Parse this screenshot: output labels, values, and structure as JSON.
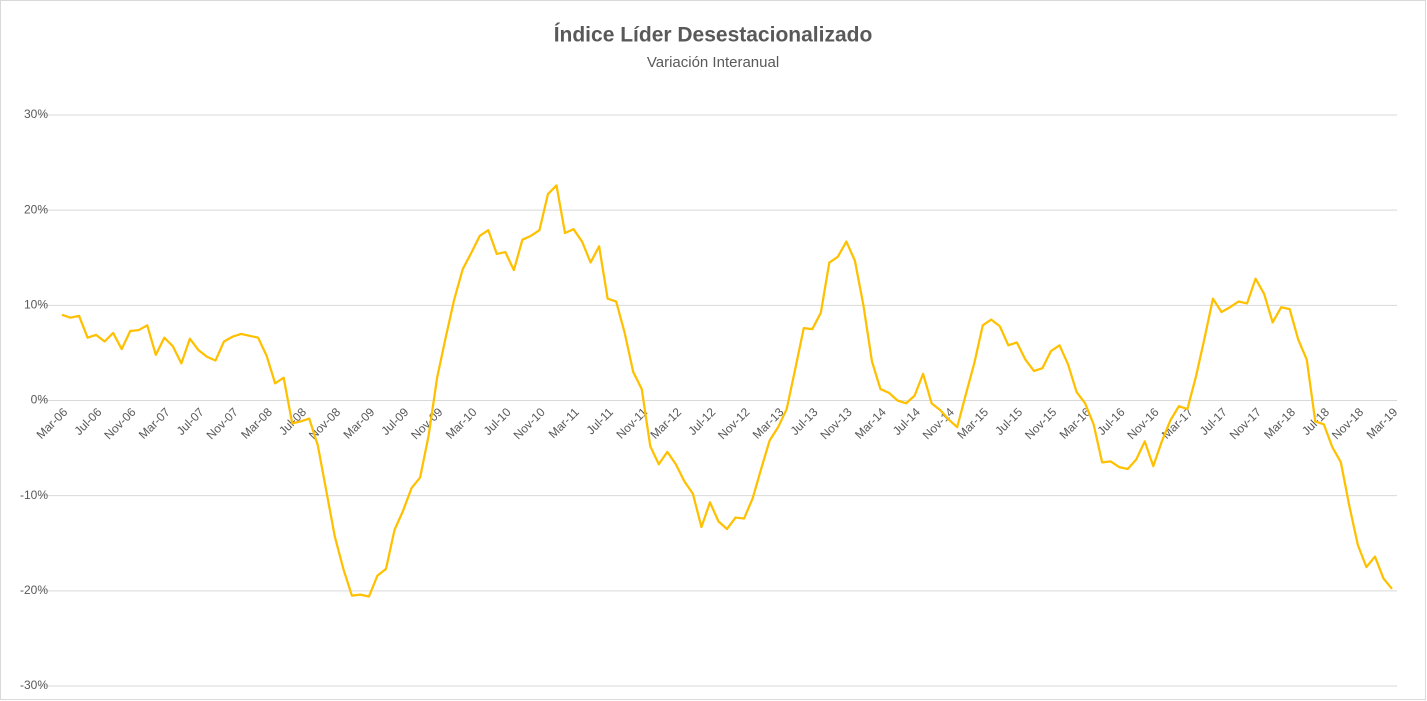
{
  "chart_data": {
    "type": "line",
    "title": "Índice Líder Desestacionalizado",
    "subtitle": "Variación Interanual",
    "categories": [
      "Mar-06",
      null,
      null,
      null,
      "Jul-06",
      null,
      null,
      null,
      "Nov-06",
      null,
      null,
      null,
      "Mar-07",
      null,
      null,
      null,
      "Jul-07",
      null,
      null,
      null,
      "Nov-07",
      null,
      null,
      null,
      "Mar-08",
      null,
      null,
      null,
      "Jul-08",
      null,
      null,
      null,
      "Nov-08",
      null,
      null,
      null,
      "Mar-09",
      null,
      null,
      null,
      "Jul-09",
      null,
      null,
      null,
      "Nov-09",
      null,
      null,
      null,
      "Mar-10",
      null,
      null,
      null,
      "Jul-10",
      null,
      null,
      null,
      "Nov-10",
      null,
      null,
      null,
      "Mar-11",
      null,
      null,
      null,
      "Jul-11",
      null,
      null,
      null,
      "Nov-11",
      null,
      null,
      null,
      "Mar-12",
      null,
      null,
      null,
      "Jul-12",
      null,
      null,
      null,
      "Nov-12",
      null,
      null,
      null,
      "Mar-13",
      null,
      null,
      null,
      "Jul-13",
      null,
      null,
      null,
      "Nov-13",
      null,
      null,
      null,
      "Mar-14",
      null,
      null,
      null,
      "Jul-14",
      null,
      null,
      null,
      "Nov-14",
      null,
      null,
      null,
      "Mar-15",
      null,
      null,
      null,
      "Jul-15",
      null,
      null,
      null,
      "Nov-15",
      null,
      null,
      null,
      "Mar-16",
      null,
      null,
      null,
      "Jul-16",
      null,
      null,
      null,
      "Nov-16",
      null,
      null,
      null,
      "Mar-17",
      null,
      null,
      null,
      "Jul-17",
      null,
      null,
      null,
      "Nov-17",
      null,
      null,
      null,
      "Mar-18",
      null,
      null,
      null,
      "Jul-18",
      null,
      null,
      null,
      "Nov-18",
      null,
      null,
      null,
      "Mar-19"
    ],
    "values": [
      9.0,
      8.7,
      8.9,
      6.6,
      6.9,
      6.2,
      7.1,
      5.4,
      7.3,
      7.4,
      7.9,
      4.8,
      6.6,
      5.7,
      3.9,
      6.5,
      5.3,
      4.6,
      4.2,
      6.2,
      6.7,
      7.0,
      6.8,
      6.6,
      4.7,
      1.8,
      2.4,
      -2.4,
      -2.2,
      -1.9,
      -4.7,
      -9.5,
      -14.3,
      -17.7,
      -20.5,
      -20.4,
      -20.6,
      -18.4,
      -17.7,
      -13.6,
      -11.6,
      -9.2,
      -8.1,
      -3.7,
      2.4,
      6.6,
      10.6,
      13.8,
      15.5,
      17.3,
      17.9,
      15.4,
      15.6,
      13.7,
      16.9,
      17.3,
      17.9,
      21.7,
      22.6,
      17.6,
      18.0,
      16.7,
      14.5,
      16.2,
      10.7,
      10.4,
      7.1,
      3.0,
      1.2,
      -4.8,
      -6.7,
      -5.4,
      -6.7,
      -8.5,
      -9.8,
      -13.3,
      -10.7,
      -12.7,
      -13.5,
      -12.3,
      -12.4,
      -10.3,
      -7.2,
      -4.2,
      -2.8,
      -0.9,
      3.3,
      7.6,
      7.5,
      9.2,
      14.5,
      15.1,
      16.7,
      14.7,
      10.0,
      4.1,
      1.2,
      0.8,
      0,
      -0.3,
      0.5,
      2.8,
      -0.3,
      -1.0,
      -2.0,
      -2.8,
      0.6,
      3.9,
      7.9,
      8.5,
      7.8,
      5.8,
      6.1,
      4.3,
      3.1,
      3.4,
      5.2,
      5.8,
      3.8,
      0.9,
      -0.3,
      -2.5,
      -6.5,
      -6.4,
      -7.0,
      -7.2,
      -6.2,
      -4.3,
      -6.9,
      -4.3,
      -2.1,
      -0.6,
      -0.9,
      2.5,
      6.5,
      10.7,
      9.3,
      9.8,
      10.4,
      10.2,
      12.8,
      11.2,
      8.2,
      9.8,
      9.6,
      6.4,
      4.3,
      -2.2,
      -2.5,
      -4.9,
      -6.5,
      -11.1,
      -15.2,
      -17.5,
      -16.4,
      -18.7,
      -19.8
    ],
    "color": "#FFC000",
    "ylim": [
      -30,
      30
    ],
    "yticks": [
      {
        "value": -30,
        "label": "-30%"
      },
      {
        "value": -20,
        "label": "-20%"
      },
      {
        "value": -10,
        "label": "-10%"
      },
      {
        "value": 0,
        "label": "0%"
      },
      {
        "value": 10,
        "label": "10%"
      },
      {
        "value": 20,
        "label": "20%"
      },
      {
        "value": 30,
        "label": "30%"
      }
    ],
    "grid": true
  }
}
